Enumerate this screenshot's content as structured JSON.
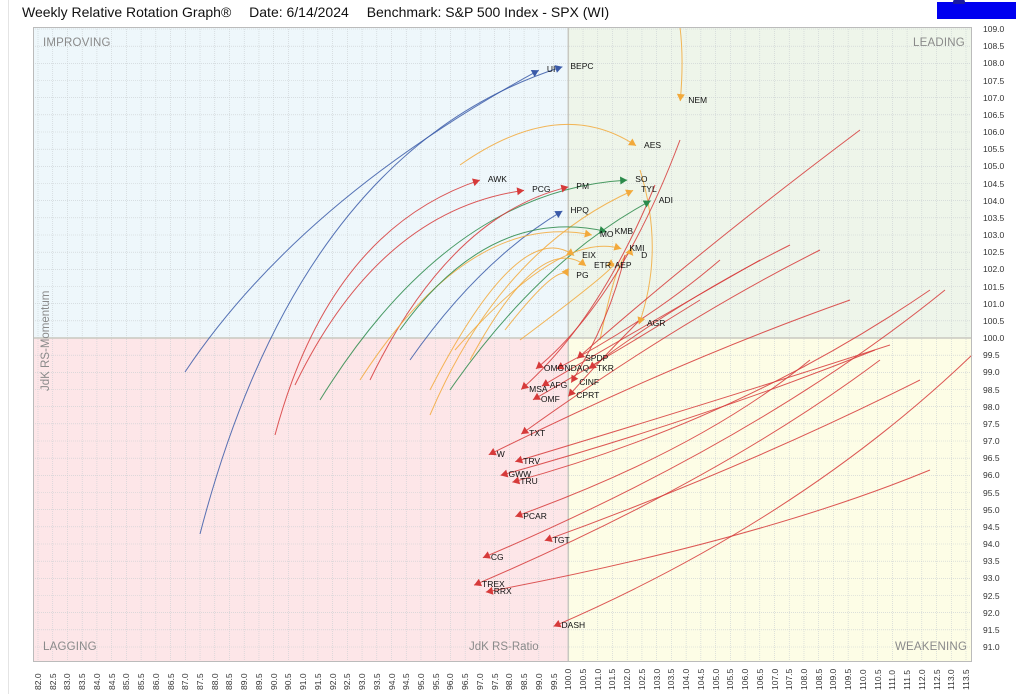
{
  "header": {
    "title": "Weekly Relative Rotation Graph®",
    "date": "Date: 6/14/2024",
    "benchmark": "Benchmark: S&P 500 Index - SPX (WI)"
  },
  "quadrants": {
    "improving": "IMPROVING",
    "leading": "LEADING",
    "lagging": "LAGGING",
    "weakening": "WEAKENING"
  },
  "colors": {
    "improving_bg": "#eef7fb",
    "leading_bg": "#eef5ea",
    "lagging_bg": "#fde6e8",
    "weakening_bg": "#fdfde6",
    "red": "#d63a3a",
    "orange": "#f2a93b",
    "green": "#2b8a4a",
    "blue": "#3a5aa8",
    "brand_block": "#0000f0"
  },
  "chart_data": {
    "type": "scatter",
    "title": "Weekly Relative Rotation Graph®",
    "subtitle": "Date: 6/14/2024  Benchmark: S&P 500 Index - SPX (WI)",
    "xlabel": "JdK RS-Ratio",
    "ylabel": "JdK RS-Momentum",
    "xlim": [
      82.0,
      113.5
    ],
    "ylim": [
      91.0,
      109.0
    ],
    "x_ticks": [
      "82.0",
      "82.5",
      "83.0",
      "83.5",
      "84.0",
      "84.5",
      "85.0",
      "85.5",
      "86.0",
      "86.5",
      "87.0",
      "87.5",
      "88.0",
      "88.5",
      "89.0",
      "89.5",
      "90.0",
      "90.5",
      "91.0",
      "91.5",
      "92.0",
      "92.5",
      "93.0",
      "93.5",
      "94.0",
      "94.5",
      "95.0",
      "95.5",
      "96.0",
      "96.5",
      "97.0",
      "97.5",
      "98.0",
      "98.5",
      "99.0",
      "99.5",
      "100.0",
      "100.5",
      "101.0",
      "101.5",
      "102.0",
      "102.5",
      "103.0",
      "103.5",
      "104.0",
      "104.5",
      "105.0",
      "105.5",
      "106.0",
      "106.5",
      "107.0",
      "107.5",
      "108.0",
      "108.5",
      "109.0",
      "109.5",
      "110.0",
      "110.5",
      "111.0",
      "111.5",
      "112.0",
      "112.5",
      "113.0",
      "113.5"
    ],
    "y_ticks": [
      "109.0",
      "108.5",
      "108.0",
      "107.5",
      "107.0",
      "106.5",
      "106.0",
      "105.5",
      "105.0",
      "104.5",
      "104.0",
      "103.5",
      "103.0",
      "102.5",
      "102.0",
      "101.5",
      "101.0",
      "100.5",
      "100.0",
      "99.5",
      "99.0",
      "98.5",
      "98.0",
      "97.5",
      "97.0",
      "96.5",
      "96.0",
      "95.5",
      "95.0",
      "94.5",
      "94.0",
      "93.5",
      "93.0",
      "92.5",
      "92.0",
      "91.5",
      "91.0"
    ],
    "grid": true,
    "quadrant_center": [
      100.0,
      100.0
    ],
    "points": [
      {
        "ticker": "UI",
        "rs_ratio": 99.0,
        "rs_momentum": 107.8,
        "quadrant": "Improving",
        "color": "blue"
      },
      {
        "ticker": "BEPC",
        "rs_ratio": 99.8,
        "rs_momentum": 107.9,
        "quadrant": "Improving",
        "color": "blue"
      },
      {
        "ticker": "NEM",
        "rs_ratio": 103.8,
        "rs_momentum": 106.9,
        "quadrant": "Leading",
        "color": "orange"
      },
      {
        "ticker": "AES",
        "rs_ratio": 102.3,
        "rs_momentum": 105.6,
        "quadrant": "Leading",
        "color": "orange"
      },
      {
        "ticker": "AWK",
        "rs_ratio": 97.0,
        "rs_momentum": 104.6,
        "quadrant": "Improving",
        "color": "red"
      },
      {
        "ticker": "SO",
        "rs_ratio": 102.0,
        "rs_momentum": 104.6,
        "quadrant": "Leading",
        "color": "green"
      },
      {
        "ticker": "PM",
        "rs_ratio": 100.0,
        "rs_momentum": 104.4,
        "quadrant": "Leading",
        "color": "red"
      },
      {
        "ticker": "PCG",
        "rs_ratio": 98.5,
        "rs_momentum": 104.3,
        "quadrant": "Improving",
        "color": "red"
      },
      {
        "ticker": "TYL",
        "rs_ratio": 102.2,
        "rs_momentum": 104.3,
        "quadrant": "Leading",
        "color": "orange"
      },
      {
        "ticker": "ADI",
        "rs_ratio": 102.8,
        "rs_momentum": 104.0,
        "quadrant": "Leading",
        "color": "green"
      },
      {
        "ticker": "HPQ",
        "rs_ratio": 99.8,
        "rs_momentum": 103.7,
        "quadrant": "Improving",
        "color": "blue"
      },
      {
        "ticker": "MO",
        "rs_ratio": 100.8,
        "rs_momentum": 103.0,
        "quadrant": "Leading",
        "color": "orange"
      },
      {
        "ticker": "KMB",
        "rs_ratio": 101.3,
        "rs_momentum": 103.1,
        "quadrant": "Leading",
        "color": "green"
      },
      {
        "ticker": "KMI",
        "rs_ratio": 101.8,
        "rs_momentum": 102.6,
        "quadrant": "Leading",
        "color": "orange"
      },
      {
        "ticker": "D",
        "rs_ratio": 102.2,
        "rs_momentum": 102.4,
        "quadrant": "Leading",
        "color": "orange"
      },
      {
        "ticker": "EIX",
        "rs_ratio": 100.2,
        "rs_momentum": 102.4,
        "quadrant": "Leading",
        "color": "orange"
      },
      {
        "ticker": "ETR",
        "rs_ratio": 100.6,
        "rs_momentum": 102.1,
        "quadrant": "Leading",
        "color": "orange"
      },
      {
        "ticker": "AEP",
        "rs_ratio": 101.3,
        "rs_momentum": 102.1,
        "quadrant": "Leading",
        "color": "orange"
      },
      {
        "ticker": "PG",
        "rs_ratio": 100.0,
        "rs_momentum": 101.8,
        "quadrant": "Leading",
        "color": "orange"
      },
      {
        "ticker": "AGR",
        "rs_ratio": 102.4,
        "rs_momentum": 100.4,
        "quadrant": "Leading",
        "color": "orange"
      },
      {
        "ticker": "SPDP",
        "rs_ratio": 100.3,
        "rs_momentum": 99.4,
        "quadrant": "Weakening",
        "color": "red"
      },
      {
        "ticker": "TKR",
        "rs_ratio": 100.7,
        "rs_momentum": 99.1,
        "quadrant": "Weakening",
        "color": "red"
      },
      {
        "ticker": "OMC",
        "rs_ratio": 98.9,
        "rs_momentum": 99.1,
        "quadrant": "Lagging",
        "color": "red"
      },
      {
        "ticker": "NDAQ",
        "rs_ratio": 99.6,
        "rs_momentum": 99.1,
        "quadrant": "Lagging",
        "color": "red"
      },
      {
        "ticker": "CINF",
        "rs_ratio": 100.1,
        "rs_momentum": 98.7,
        "quadrant": "Weakening",
        "color": "red"
      },
      {
        "ticker": "AFG",
        "rs_ratio": 99.1,
        "rs_momentum": 98.6,
        "quadrant": "Lagging",
        "color": "red"
      },
      {
        "ticker": "MSA",
        "rs_ratio": 98.4,
        "rs_momentum": 98.5,
        "quadrant": "Lagging",
        "color": "red"
      },
      {
        "ticker": "CPRT",
        "rs_ratio": 100.0,
        "rs_momentum": 98.3,
        "quadrant": "Lagging",
        "color": "red"
      },
      {
        "ticker": "OMF",
        "rs_ratio": 98.8,
        "rs_momentum": 98.2,
        "quadrant": "Lagging",
        "color": "red"
      },
      {
        "ticker": "TXT",
        "rs_ratio": 98.4,
        "rs_momentum": 97.2,
        "quadrant": "Lagging",
        "color": "red"
      },
      {
        "ticker": "W",
        "rs_ratio": 97.3,
        "rs_momentum": 96.6,
        "quadrant": "Lagging",
        "color": "red"
      },
      {
        "ticker": "TRV",
        "rs_ratio": 98.2,
        "rs_momentum": 96.4,
        "quadrant": "Lagging",
        "color": "red"
      },
      {
        "ticker": "GWW",
        "rs_ratio": 97.7,
        "rs_momentum": 96.0,
        "quadrant": "Lagging",
        "color": "red"
      },
      {
        "ticker": "TRU",
        "rs_ratio": 98.1,
        "rs_momentum": 95.8,
        "quadrant": "Lagging",
        "color": "red"
      },
      {
        "ticker": "PCAR",
        "rs_ratio": 98.2,
        "rs_momentum": 94.8,
        "quadrant": "Lagging",
        "color": "red"
      },
      {
        "ticker": "TGT",
        "rs_ratio": 99.2,
        "rs_momentum": 94.1,
        "quadrant": "Lagging",
        "color": "red"
      },
      {
        "ticker": "CG",
        "rs_ratio": 97.1,
        "rs_momentum": 93.6,
        "quadrant": "Lagging",
        "color": "red"
      },
      {
        "ticker": "TREX",
        "rs_ratio": 96.8,
        "rs_momentum": 92.8,
        "quadrant": "Lagging",
        "color": "red"
      },
      {
        "ticker": "RRX",
        "rs_ratio": 97.2,
        "rs_momentum": 92.6,
        "quadrant": "Lagging",
        "color": "red"
      },
      {
        "ticker": "DASH",
        "rs_ratio": 99.5,
        "rs_momentum": 91.6,
        "quadrant": "Lagging",
        "color": "red"
      }
    ]
  }
}
